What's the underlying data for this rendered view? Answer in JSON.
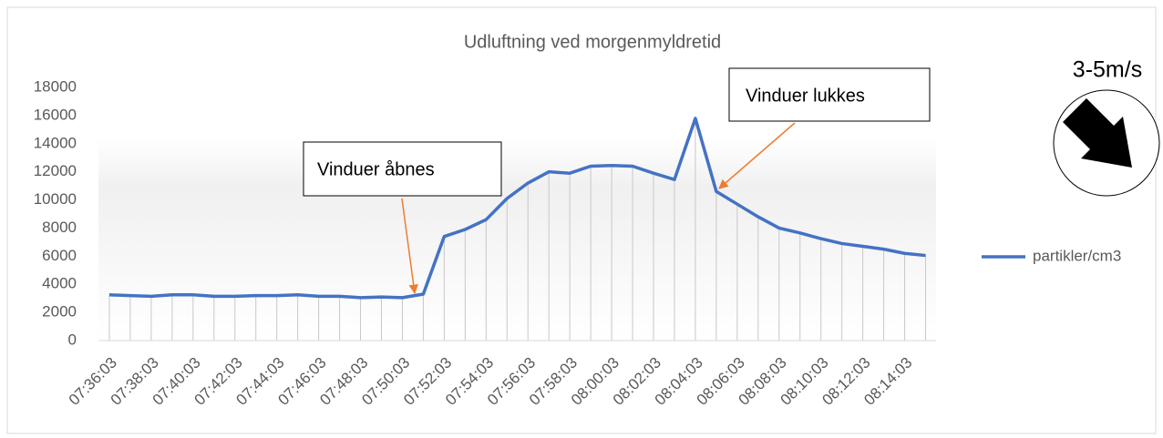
{
  "chart_data": {
    "type": "line",
    "title": "Udluftning ved morgenmyldretid",
    "categories": [
      "07:36:03",
      null,
      "07:38:03",
      null,
      "07:40:03",
      null,
      "07:42:03",
      null,
      "07:44:03",
      null,
      "07:46:03",
      null,
      "07:48:03",
      null,
      "07:50:03",
      null,
      "07:52:03",
      null,
      "07:54:03",
      null,
      "07:56:03",
      null,
      "07:58:03",
      null,
      "08:00:03",
      null,
      "08:02:03",
      null,
      "08:04:03",
      null,
      "08:06:03",
      null,
      "08:08:03",
      null,
      "08:10:03",
      null,
      "08:12:03",
      null,
      "08:14:03",
      null
    ],
    "series": [
      {
        "name": "partikler/cm3",
        "color": "#4472c4",
        "values": [
          3250,
          3200,
          3150,
          3250,
          3250,
          3150,
          3150,
          3200,
          3200,
          3250,
          3150,
          3150,
          3050,
          3100,
          3050,
          3300,
          7400,
          7900,
          8600,
          10100,
          11200,
          12000,
          11900,
          12400,
          12450,
          12400,
          11900,
          11450,
          15800,
          10600,
          9700,
          8800,
          8000,
          7650,
          7250,
          6900,
          6700,
          6500,
          6200,
          6050
        ]
      }
    ],
    "ylim": [
      0,
      18000
    ],
    "yticks": [
      0,
      2000,
      4000,
      6000,
      8000,
      10000,
      12000,
      14000,
      16000,
      18000
    ],
    "grid": false,
    "drop_lines": true,
    "legend": "right",
    "annotations": [
      "Vinduer åbnes",
      "Vinduer lukkes"
    ],
    "wind_label": "3-5m/s"
  }
}
